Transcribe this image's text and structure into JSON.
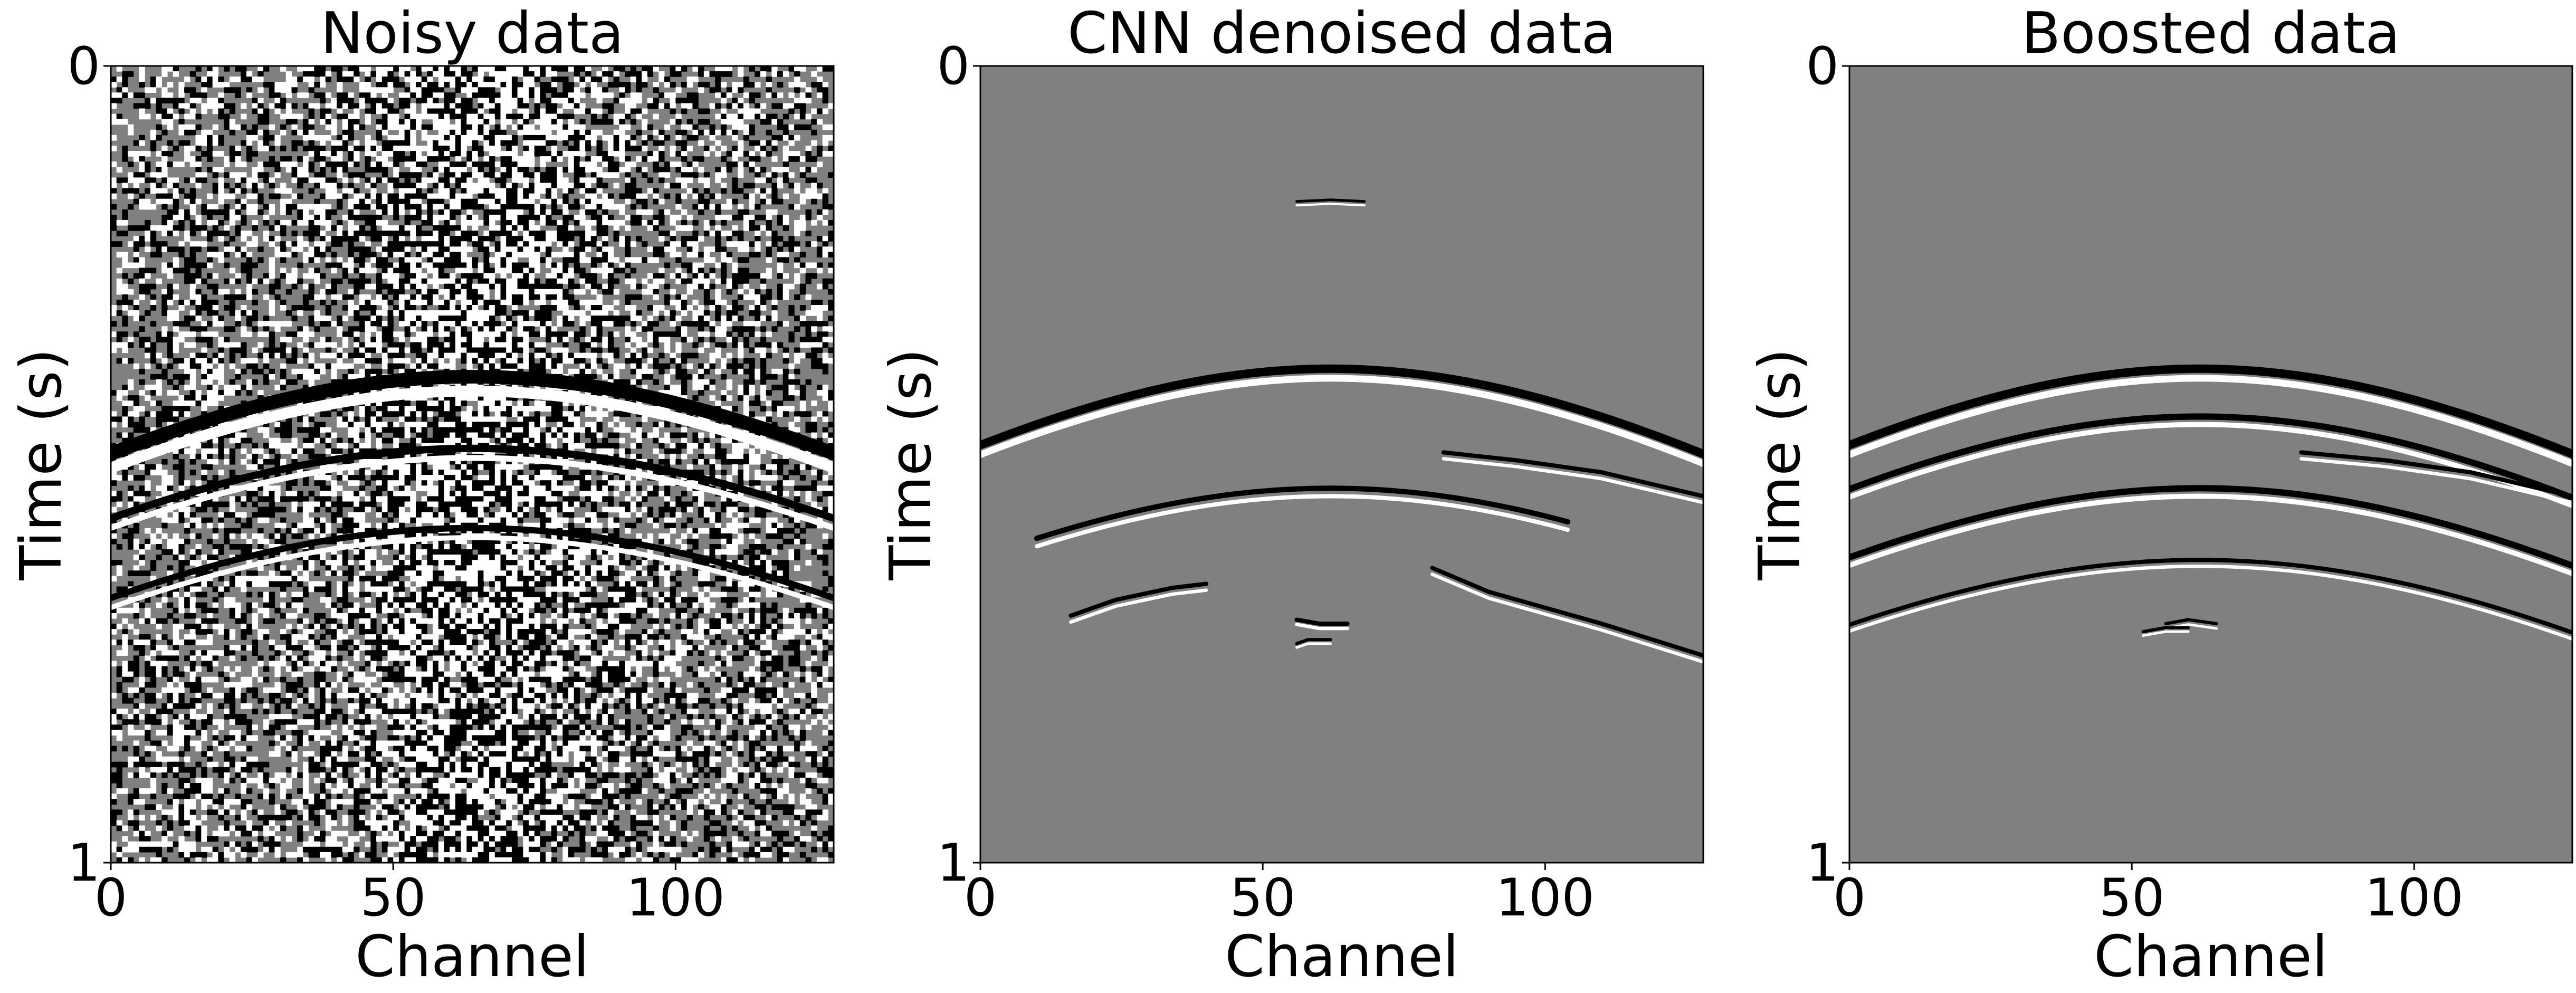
{
  "chart_data": [
    {
      "type": "heatmap",
      "title": "Noisy data",
      "xlabel": "Channel",
      "ylabel": "Time (s)",
      "xlim": [
        0,
        128
      ],
      "ylim": [
        1,
        0
      ],
      "xticks": [
        0,
        50,
        100
      ],
      "yticks": [
        0,
        1
      ],
      "colormap": "gray",
      "content": "noisy"
    },
    {
      "type": "heatmap",
      "title": "CNN denoised data",
      "xlabel": "Channel",
      "ylabel": "Time (s)",
      "xlim": [
        0,
        128
      ],
      "ylim": [
        1,
        0
      ],
      "xticks": [
        0,
        50,
        100
      ],
      "yticks": [
        0,
        1
      ],
      "colormap": "gray",
      "content": "denoised"
    },
    {
      "type": "heatmap",
      "title": "Boosted data",
      "xlabel": "Channel",
      "ylabel": "Time (s)",
      "xlim": [
        0,
        128
      ],
      "ylim": [
        1,
        0
      ],
      "xticks": [
        0,
        50,
        100
      ],
      "yticks": [
        0,
        1
      ],
      "colormap": "gray",
      "content": "boosted"
    }
  ],
  "colors": {
    "background": "#808080",
    "ink": "#000000",
    "paper": "#ffffff"
  }
}
